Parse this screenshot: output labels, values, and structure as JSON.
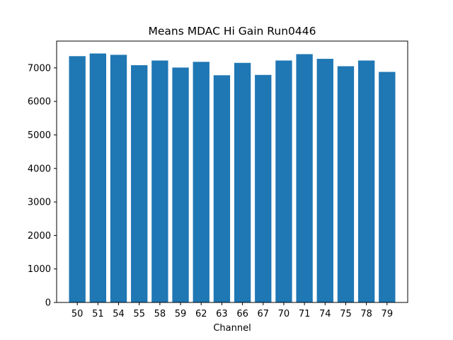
{
  "chart_data": {
    "type": "bar",
    "title": "Means MDAC Hi Gain Run0446",
    "xlabel": "Channel",
    "ylabel": "",
    "categories": [
      "50",
      "51",
      "54",
      "55",
      "58",
      "59",
      "62",
      "63",
      "66",
      "67",
      "70",
      "71",
      "74",
      "75",
      "78",
      "79"
    ],
    "values": [
      7350,
      7430,
      7390,
      7080,
      7220,
      7010,
      7180,
      6780,
      7150,
      6790,
      7220,
      7410,
      7270,
      7050,
      7220,
      6880
    ],
    "ylim": [
      0,
      7800
    ],
    "yticks": [
      0,
      1000,
      2000,
      3000,
      4000,
      5000,
      6000,
      7000
    ],
    "bar_color": "#1f77b4",
    "grid": false,
    "legend": "none"
  }
}
